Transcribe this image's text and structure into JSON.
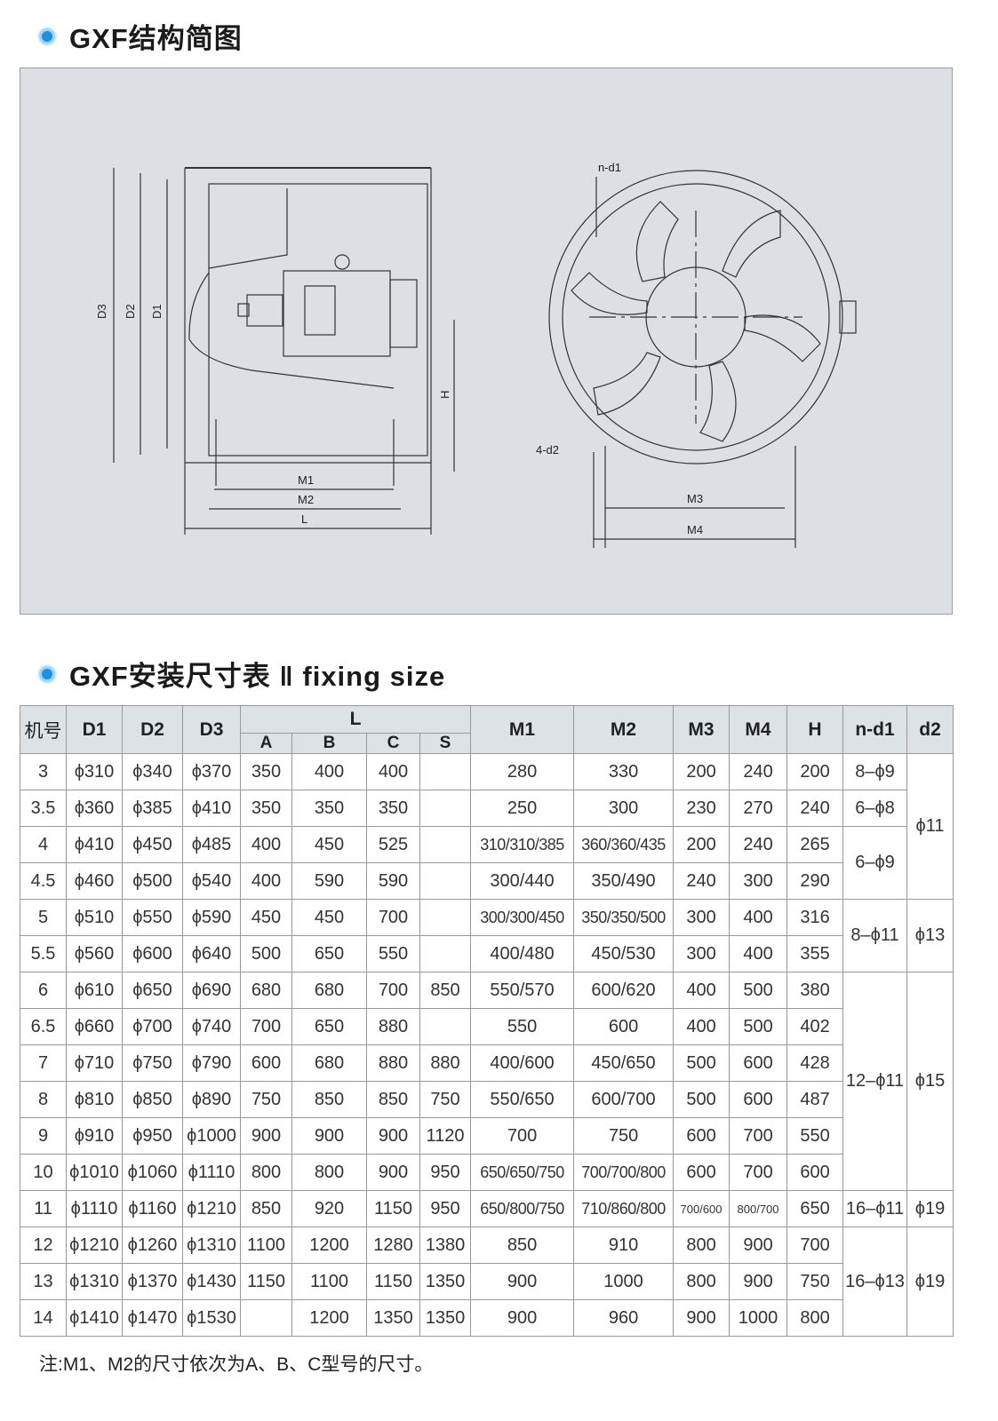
{
  "section1": {
    "title": "GXF结构简图"
  },
  "drawing": {
    "labels": {
      "D3": "D3",
      "D2": "D2",
      "D1": "D1",
      "H": "H",
      "M1": "M1",
      "M2": "M2",
      "L": "L",
      "nd1": "n-d1",
      "d2": "4-d2",
      "M3": "M3",
      "M4": "M4"
    }
  },
  "section2": {
    "title": "GXF安装尺寸表 ‖ fixing size"
  },
  "table": {
    "headers": {
      "no": "机号",
      "D1": "D1",
      "D2": "D2",
      "D3": "D3",
      "L": "L",
      "A": "A",
      "B": "B",
      "C": "C",
      "S": "S",
      "M1": "M1",
      "M2": "M2",
      "M3": "M3",
      "M4": "M4",
      "H": "H",
      "nd1": "n-d1",
      "d2": "d2"
    },
    "rows": [
      [
        "3",
        "ϕ310",
        "ϕ340",
        "ϕ370",
        "350",
        "400",
        "400",
        "",
        "280",
        "330",
        "200",
        "240",
        "200"
      ],
      [
        "3.5",
        "ϕ360",
        "ϕ385",
        "ϕ410",
        "350",
        "350",
        "350",
        "",
        "250",
        "300",
        "230",
        "270",
        "240"
      ],
      [
        "4",
        "ϕ410",
        "ϕ450",
        "ϕ485",
        "400",
        "450",
        "525",
        "",
        "310/310/385",
        "360/360/435",
        "200",
        "240",
        "265"
      ],
      [
        "4.5",
        "ϕ460",
        "ϕ500",
        "ϕ540",
        "400",
        "590",
        "590",
        "",
        "300/440",
        "350/490",
        "240",
        "300",
        "290"
      ],
      [
        "5",
        "ϕ510",
        "ϕ550",
        "ϕ590",
        "450",
        "450",
        "700",
        "",
        "300/300/450",
        "350/350/500",
        "300",
        "400",
        "316"
      ],
      [
        "5.5",
        "ϕ560",
        "ϕ600",
        "ϕ640",
        "500",
        "650",
        "550",
        "",
        "400/480",
        "450/530",
        "300",
        "400",
        "355"
      ],
      [
        "6",
        "ϕ610",
        "ϕ650",
        "ϕ690",
        "680",
        "680",
        "700",
        "850",
        "550/570",
        "600/620",
        "400",
        "500",
        "380"
      ],
      [
        "6.5",
        "ϕ660",
        "ϕ700",
        "ϕ740",
        "700",
        "650",
        "880",
        "",
        "550",
        "600",
        "400",
        "500",
        "402"
      ],
      [
        "7",
        "ϕ710",
        "ϕ750",
        "ϕ790",
        "600",
        "680",
        "880",
        "880",
        "400/600",
        "450/650",
        "500",
        "600",
        "428"
      ],
      [
        "8",
        "ϕ810",
        "ϕ850",
        "ϕ890",
        "750",
        "850",
        "850",
        "750",
        "550/650",
        "600/700",
        "500",
        "600",
        "487"
      ],
      [
        "9",
        "ϕ910",
        "ϕ950",
        "ϕ1000",
        "900",
        "900",
        "900",
        "1120",
        "700",
        "750",
        "600",
        "700",
        "550"
      ],
      [
        "10",
        "ϕ1010",
        "ϕ1060",
        "ϕ1110",
        "800",
        "800",
        "900",
        "950",
        "650/650/750",
        "700/700/800",
        "600",
        "700",
        "600"
      ],
      [
        "11",
        "ϕ1110",
        "ϕ1160",
        "ϕ1210",
        "850",
        "920",
        "1150",
        "950",
        "650/800/750",
        "710/860/800",
        "700/600",
        "800/700",
        "650"
      ],
      [
        "12",
        "ϕ1210",
        "ϕ1260",
        "ϕ1310",
        "1100",
        "1200",
        "1280",
        "1380",
        "850",
        "910",
        "800",
        "900",
        "700"
      ],
      [
        "13",
        "ϕ1310",
        "ϕ1370",
        "ϕ1430",
        "1150",
        "1100",
        "1150",
        "1350",
        "900",
        "1000",
        "800",
        "900",
        "750"
      ],
      [
        "14",
        "ϕ1410",
        "ϕ1470",
        "ϕ1530",
        "",
        "1200",
        "1350",
        "1350",
        "900",
        "960",
        "900",
        "1000",
        "800"
      ]
    ],
    "nd1_groups": [
      {
        "value": "8–ϕ9",
        "span": 1
      },
      {
        "value": "6–ϕ8",
        "span": 1
      },
      {
        "value": "6–ϕ9",
        "span": 2
      },
      {
        "value": "8–ϕ11",
        "span": 2
      },
      {
        "value": "12–ϕ11",
        "span": 6
      },
      {
        "value": "16–ϕ11",
        "span": 1
      },
      {
        "value": "16–ϕ13",
        "span": 3
      }
    ],
    "d2_groups": [
      {
        "value": "ϕ11",
        "span": 4
      },
      {
        "value": "ϕ13",
        "span": 2
      },
      {
        "value": "ϕ15",
        "span": 6
      },
      {
        "value": "ϕ19",
        "span": 1
      },
      {
        "value": "ϕ19",
        "span": 3
      }
    ]
  },
  "note": "注:M1、M2的尺寸依次为A、B、C型号的尺寸。",
  "colors": {
    "bullet": "#1e90e0",
    "drawing_bg": "#dcdfe3",
    "header_bg": "#dde2e7"
  }
}
